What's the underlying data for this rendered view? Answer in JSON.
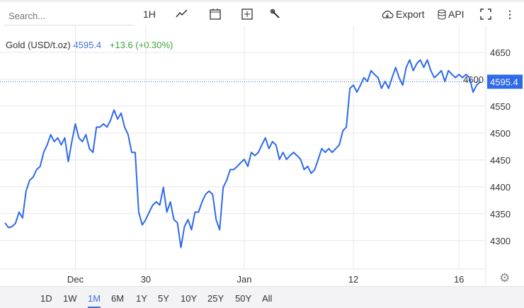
{
  "toolbar": {
    "search_placeholder": "Search...",
    "interval": "1H",
    "export": "Export",
    "api": "API"
  },
  "legend": {
    "name": "Gold (USD/t.oz)",
    "price": "4595.4",
    "change": "+13.6 (+0.30%)"
  },
  "colors": {
    "line": "#2f6ae8",
    "up": "#3aa63a",
    "grid": "#e8e8e8"
  },
  "range_buttons": [
    "1D",
    "1W",
    "1M",
    "6M",
    "1Y",
    "5Y",
    "10Y",
    "25Y",
    "50Y",
    "All"
  ],
  "active_range": "1M",
  "chart_data": {
    "type": "line",
    "ylim": [
      4247,
      4700
    ],
    "y_ticks": [
      "4650",
      "4600",
      "4550",
      "4500",
      "4450",
      "4400",
      "4350",
      "4300"
    ],
    "x_ticks": [
      {
        "label": "Dec",
        "index": 20
      },
      {
        "label": "30",
        "index": 40
      },
      {
        "label": "Jan",
        "index": 68
      },
      {
        "label": "12",
        "index": 99
      },
      {
        "label": "16",
        "index": 129
      }
    ],
    "last_price_label": "4595.4",
    "last_price": 4595.4,
    "values": [
      4333,
      4324,
      4326,
      4332,
      4353,
      4342,
      4392,
      4412,
      4418,
      4432,
      4438,
      4464,
      4478,
      4497,
      4484,
      4491,
      4478,
      4491,
      4447,
      4484,
      4517,
      4491,
      4484,
      4497,
      4471,
      4464,
      4511,
      4511,
      4517,
      4511,
      4524,
      4543,
      4526,
      4537,
      4511,
      4497,
      4464,
      4464,
      4353,
      4329,
      4339,
      4353,
      4366,
      4372,
      4366,
      4399,
      4353,
      4372,
      4339,
      4333,
      4287,
      4326,
      4339,
      4320,
      4353,
      4353,
      4372,
      4386,
      4392,
      4386,
      4339,
      4320,
      4399,
      4412,
      4432,
      4432,
      4438,
      4445,
      4451,
      4438,
      4464,
      4458,
      4464,
      4478,
      4491,
      4471,
      4484,
      4478,
      4451,
      4464,
      4451,
      4458,
      4464,
      4458,
      4451,
      4432,
      4438,
      4425,
      4432,
      4451,
      4471,
      4464,
      4471,
      4464,
      4471,
      4478,
      4504,
      4511,
      4583,
      4589,
      4576,
      4589,
      4603,
      4596,
      4616,
      4609,
      4603,
      4583,
      4596,
      4583,
      4603,
      4622,
      4603,
      4589,
      4622,
      4636,
      4616,
      4629,
      4636,
      4622,
      4636,
      4616,
      4603,
      4609,
      4616,
      4596,
      4616,
      4609,
      4603,
      4609,
      4603,
      4609,
      4603,
      4576,
      4589,
      4595
    ]
  }
}
